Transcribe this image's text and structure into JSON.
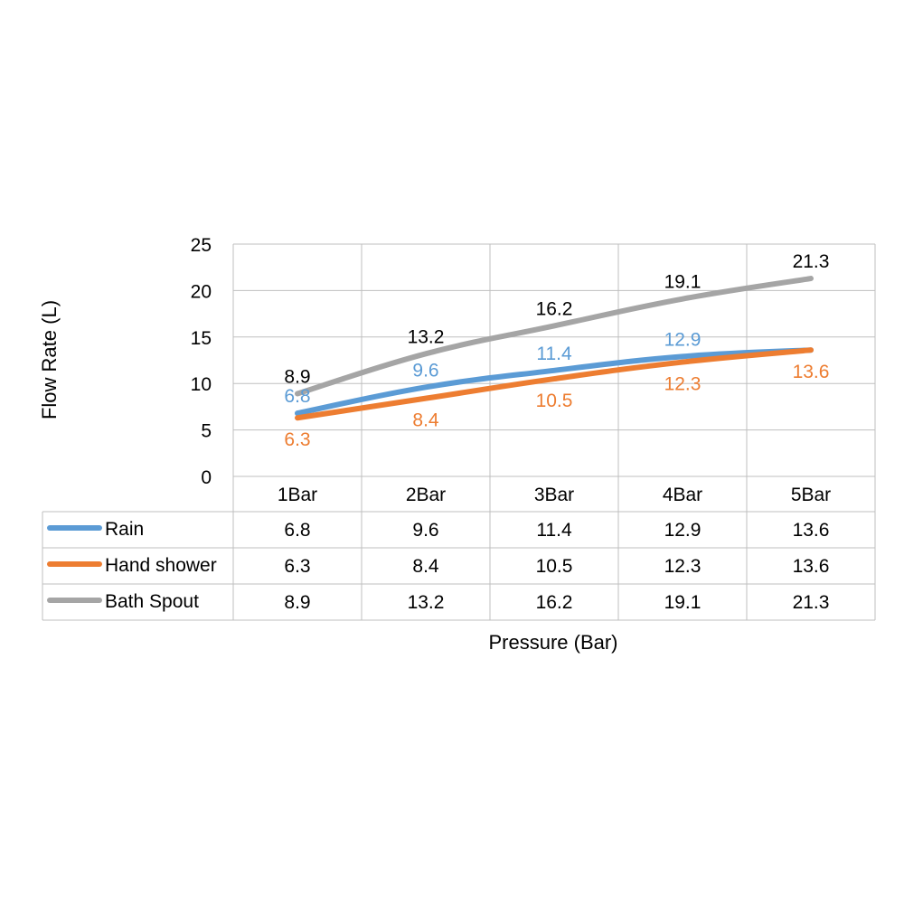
{
  "chart_data": {
    "type": "line",
    "categories": [
      "1Bar",
      "2Bar",
      "3Bar",
      "4Bar",
      "5Bar"
    ],
    "series": [
      {
        "name": "Rain",
        "values": [
          6.8,
          9.6,
          11.4,
          12.9,
          13.6
        ],
        "color": "#5B9BD5",
        "label_color": "#5B9BD5"
      },
      {
        "name": "Hand shower",
        "values": [
          6.3,
          8.4,
          10.5,
          12.3,
          13.6
        ],
        "color": "#ED7D31",
        "label_color": "#ED7D31"
      },
      {
        "name": "Bath Spout",
        "values": [
          8.9,
          13.2,
          16.2,
          19.1,
          21.3
        ],
        "color": "#A5A5A5",
        "label_color": "#000000"
      }
    ],
    "title": "",
    "xlabel": "Pressure (Bar)",
    "ylabel": "Flow Rate (L)",
    "ylim": [
      0,
      25
    ],
    "yticks": [
      "0",
      "5",
      "10",
      "15",
      "20",
      "25"
    ],
    "grid": true,
    "legend": "data-table",
    "data_labels": {
      "Rain": [
        "6.8",
        "9.6",
        "11.4",
        "12.9",
        ""
      ],
      "Hand shower": [
        "6.3",
        "8.4",
        "10.5",
        "12.3",
        "13.6"
      ],
      "Bath Spout": [
        "8.9",
        "13.2",
        "16.2",
        "19.1",
        "21.3"
      ]
    },
    "table": {
      "rows": [
        {
          "name": "Rain",
          "cells": [
            "6.8",
            "9.6",
            "11.4",
            "12.9",
            "13.6"
          ]
        },
        {
          "name": "Hand shower",
          "cells": [
            "6.3",
            "8.4",
            "10.5",
            "12.3",
            "13.6"
          ]
        },
        {
          "name": "Bath Spout",
          "cells": [
            "8.9",
            "13.2",
            "16.2",
            "19.1",
            "21.3"
          ]
        }
      ]
    }
  }
}
